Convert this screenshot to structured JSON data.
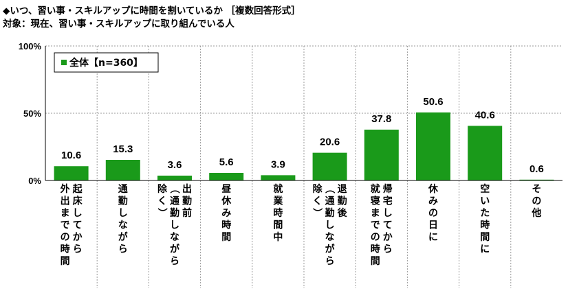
{
  "title": "◆いつ、習い事・スキルアップに時間を割いているか ［複数回答形式］",
  "subtitle": "対象：現在、習い事・スキルアップに取り組んでいる人",
  "chart_data": {
    "type": "bar",
    "categories": [
      "起床してから外出までの時間",
      "通勤しながら",
      "出勤前（通勤しながら除く）",
      "昼休み時間",
      "就業時間中",
      "退勤後（通勤しながら除く）",
      "帰宅してから就寝までの時間",
      "休みの日に",
      "空いた時間に",
      "その他"
    ],
    "category_lines": [
      [
        "起床してから",
        "外出までの時間"
      ],
      [
        "通勤しながら"
      ],
      [
        "出勤前",
        "（通勤しながら",
        "除く）"
      ],
      [
        "昼休み時間"
      ],
      [
        "就業時間中"
      ],
      [
        "退勤後",
        "（通勤しながら",
        "除く）"
      ],
      [
        "帰宅してから",
        "就寝までの時間"
      ],
      [
        "休みの日に"
      ],
      [
        "空いた時間に"
      ],
      [
        "その他"
      ]
    ],
    "series": [
      {
        "name": "全体【n=360】",
        "values": [
          10.6,
          15.3,
          3.6,
          5.6,
          3.9,
          20.6,
          37.8,
          50.6,
          40.6,
          0.6
        ]
      }
    ],
    "value_labels": [
      "10.6",
      "15.3",
      "3.6",
      "5.6",
      "3.9",
      "20.6",
      "37.8",
      "50.6",
      "40.6",
      "0.6"
    ],
    "yticks": [
      {
        "value": 0,
        "label": "0%"
      },
      {
        "value": 50,
        "label": "50%"
      },
      {
        "value": 100,
        "label": "100%"
      }
    ],
    "ylim": [
      0,
      100
    ],
    "legend_position": "top-left",
    "colors": {
      "bar": "#1a9a1a",
      "grid": "#999999",
      "axis": "#000000"
    }
  }
}
